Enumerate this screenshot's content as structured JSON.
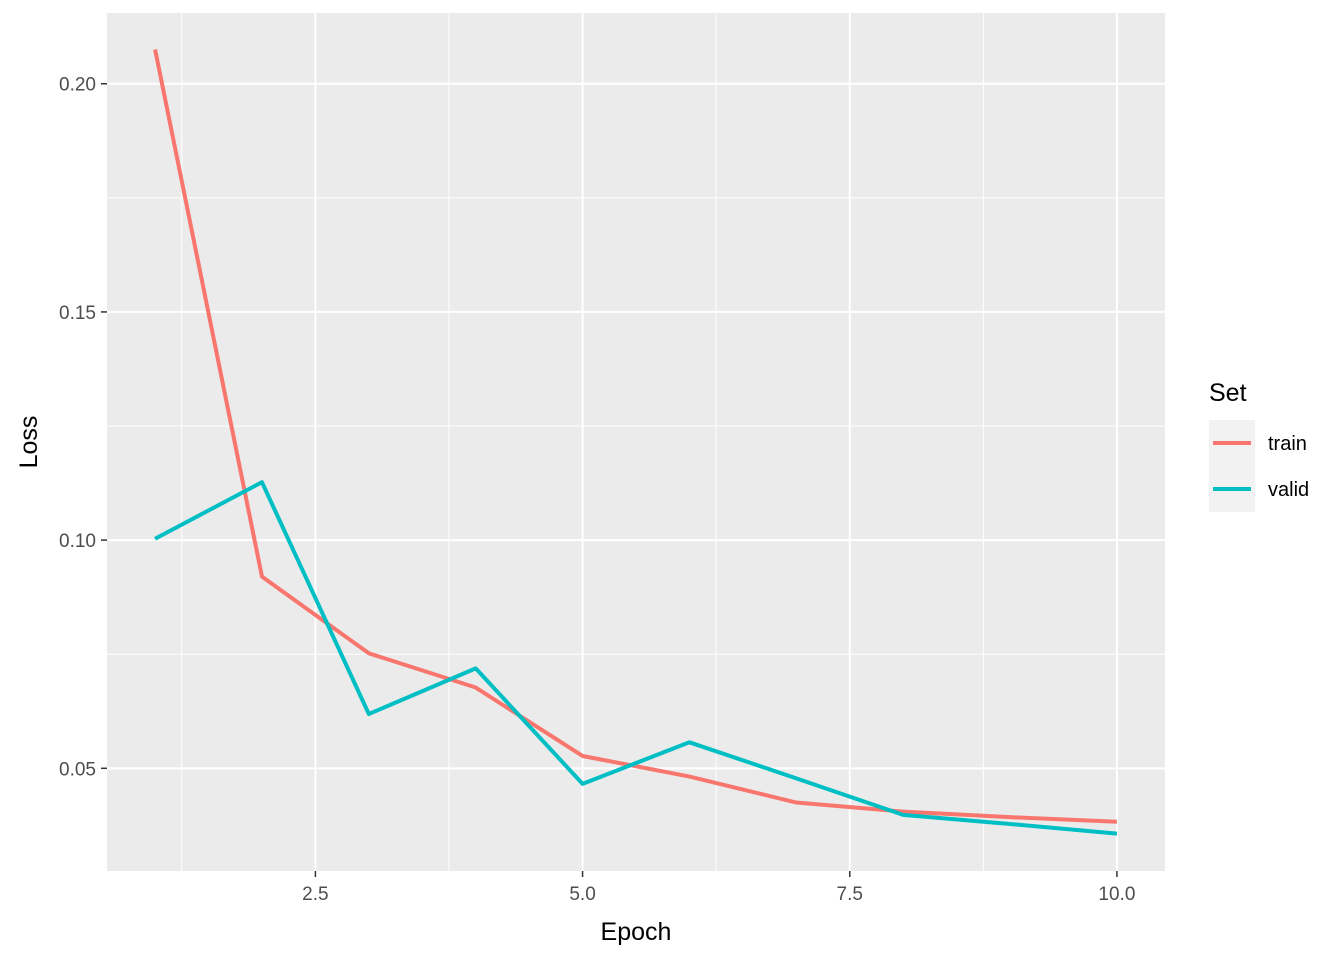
{
  "chart_data": {
    "type": "line",
    "xlabel": "Epoch",
    "ylabel": "Loss",
    "xlim": [
      0.55,
      10.45
    ],
    "ylim": [
      0.0275,
      0.2155
    ],
    "x_ticks": [
      2.5,
      5.0,
      7.5,
      10.0
    ],
    "x_tick_labels": [
      "2.5",
      "5.0",
      "7.5",
      "10.0"
    ],
    "y_ticks": [
      0.05,
      0.1,
      0.15,
      0.2
    ],
    "y_tick_labels": [
      "0.05",
      "0.10",
      "0.15",
      "0.20"
    ],
    "grid": true,
    "background": "#EBEBEB",
    "legend": {
      "title": "Set",
      "position": "right"
    },
    "x": [
      1,
      2,
      3,
      4,
      5,
      6,
      7,
      8,
      9,
      10
    ],
    "series": [
      {
        "name": "train",
        "color": "#F8766D",
        "values": [
          0.2075,
          0.092,
          0.0752,
          0.0677,
          0.0527,
          0.0482,
          0.0425,
          0.0405,
          0.0393,
          0.0383
        ]
      },
      {
        "name": "valid",
        "color": "#00BFC4",
        "values": [
          0.1003,
          0.1127,
          0.0619,
          0.0719,
          0.0466,
          0.0557,
          0.0478,
          0.0398,
          0.0378,
          0.0357
        ]
      }
    ]
  }
}
